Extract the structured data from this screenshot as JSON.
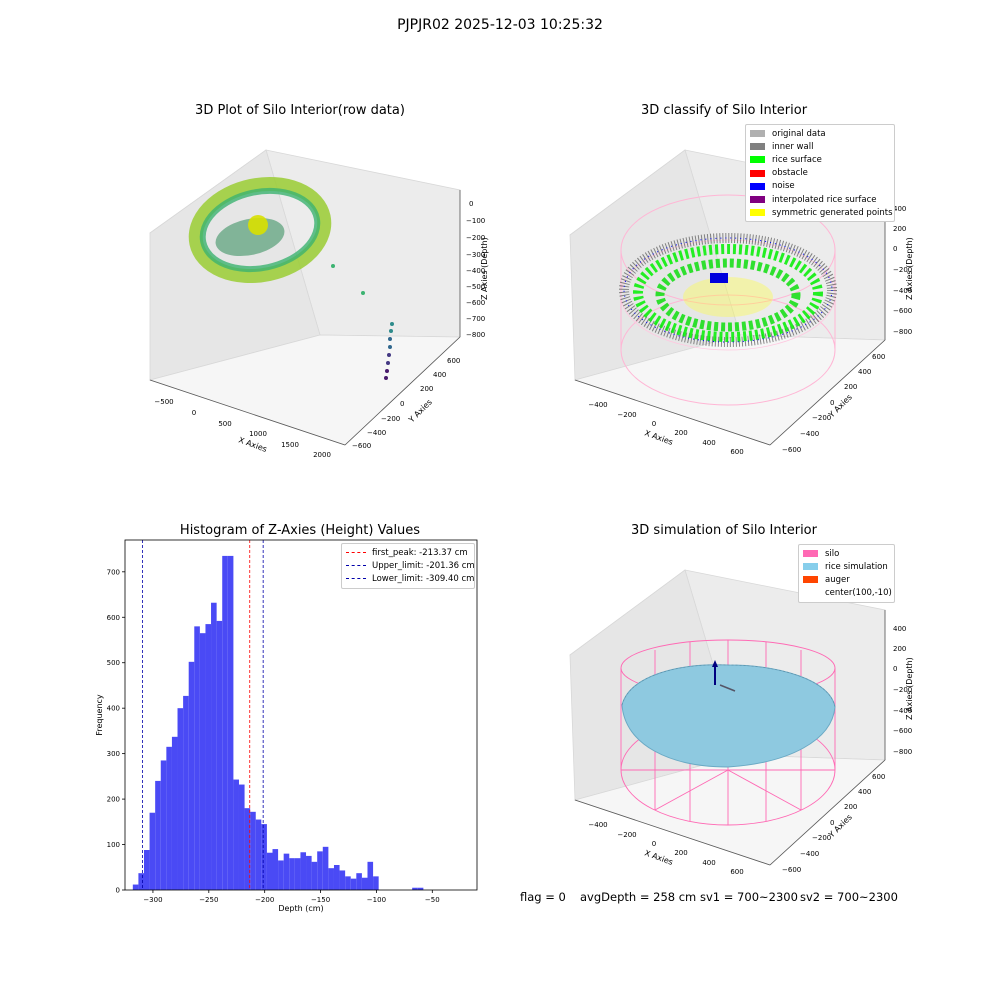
{
  "suptitle": "PJPJR02 2025-12-03 10:25:32",
  "status_line": {
    "flag": "flag = 0",
    "avg_depth": "avgDepth = 258 cm",
    "sv1": "sv1 = 700~2300",
    "sv2": "sv2 = 700~2300"
  },
  "panel_raw": {
    "title": "3D Plot of Silo Interior(row data)",
    "xlabel": "X Axies",
    "ylabel": "Y Axies",
    "zlabel": "Z Axies (Depth)",
    "x_ticks": [
      "−500",
      "0",
      "500",
      "1000",
      "1500",
      "2000"
    ],
    "y_ticks": [
      "−600",
      "−400",
      "−200",
      "0",
      "200",
      "400",
      "600"
    ],
    "z_ticks": [
      "0",
      "−100",
      "−200",
      "−300",
      "−400",
      "−500",
      "−600",
      "−700",
      "−800"
    ]
  },
  "panel_classify": {
    "title": "3D classify of Silo Interior",
    "xlabel": "X Axies",
    "ylabel": "Y Axies",
    "zlabel": "Z Axies (Depth)",
    "x_ticks": [
      "−400",
      "−200",
      "0",
      "200",
      "400",
      "600"
    ],
    "y_ticks": [
      "−600",
      "−400",
      "−200",
      "0",
      "200",
      "400",
      "600"
    ],
    "z_ticks": [
      "400",
      "200",
      "0",
      "−200",
      "−400",
      "−600",
      "−800"
    ],
    "legend": [
      {
        "label": "original data",
        "color": "#b0b0b0"
      },
      {
        "label": "inner wall",
        "color": "#808080"
      },
      {
        "label": "rice surface",
        "color": "#00ff00"
      },
      {
        "label": "obstacle",
        "color": "#ff0000"
      },
      {
        "label": "noise",
        "color": "#0000ff"
      },
      {
        "label": "interpolated rice surface",
        "color": "#800080"
      },
      {
        "label": "symmetric generated points",
        "color": "#ffff00"
      }
    ]
  },
  "panel_sim": {
    "title": "3D simulation of Silo Interior",
    "xlabel": "X Axies",
    "ylabel": "Y Axies",
    "zlabel": "Z Axies (Depth)",
    "x_ticks": [
      "−400",
      "−200",
      "0",
      "200",
      "400",
      "600"
    ],
    "y_ticks": [
      "−600",
      "−400",
      "−200",
      "0",
      "200",
      "400",
      "600"
    ],
    "z_ticks": [
      "400",
      "200",
      "0",
      "−200",
      "−400",
      "−600",
      "−800"
    ],
    "legend": [
      {
        "label": "silo",
        "color": "#ff69b4"
      },
      {
        "label": "rice simulation",
        "color": "#87ceeb"
      },
      {
        "label": "auger",
        "color": "#ff4500"
      },
      {
        "label": "center(100,-10)",
        "color": ""
      }
    ]
  },
  "chart_data": {
    "type": "bar",
    "title": "Histogram of Z-Axies (Height) Values",
    "xlabel": "Depth (cm)",
    "ylabel": "Frequency",
    "xlim": [
      -325,
      -10
    ],
    "ylim": [
      0,
      770
    ],
    "x_ticks": [
      -300,
      -250,
      -200,
      -150,
      -100,
      -50
    ],
    "y_ticks": [
      0,
      100,
      200,
      300,
      400,
      500,
      600,
      700
    ],
    "bar_color": "#4a4af5",
    "bin_width": 5,
    "bins": [
      [
        -318,
        12
      ],
      [
        -313,
        37
      ],
      [
        -308,
        88
      ],
      [
        -303,
        170
      ],
      [
        -298,
        240
      ],
      [
        -293,
        285
      ],
      [
        -288,
        315
      ],
      [
        -283,
        337
      ],
      [
        -278,
        400
      ],
      [
        -273,
        427
      ],
      [
        -268,
        502
      ],
      [
        -263,
        580
      ],
      [
        -258,
        565
      ],
      [
        -253,
        585
      ],
      [
        -248,
        632
      ],
      [
        -243,
        592
      ],
      [
        -238,
        735
      ],
      [
        -233,
        735
      ],
      [
        -228,
        243
      ],
      [
        -223,
        232
      ],
      [
        -218,
        180
      ],
      [
        -213,
        172
      ],
      [
        -208,
        155
      ],
      [
        -203,
        145
      ],
      [
        -198,
        82
      ],
      [
        -193,
        90
      ],
      [
        -188,
        65
      ],
      [
        -183,
        80
      ],
      [
        -178,
        70
      ],
      [
        -173,
        70
      ],
      [
        -168,
        83
      ],
      [
        -163,
        75
      ],
      [
        -158,
        62
      ],
      [
        -153,
        85
      ],
      [
        -148,
        95
      ],
      [
        -143,
        48
      ],
      [
        -138,
        55
      ],
      [
        -133,
        43
      ],
      [
        -128,
        30
      ],
      [
        -123,
        25
      ],
      [
        -118,
        37
      ],
      [
        -113,
        27
      ],
      [
        -108,
        62
      ],
      [
        -103,
        30
      ],
      [
        -68,
        5
      ],
      [
        -63,
        5
      ]
    ],
    "bin_width_list": [
      5,
      5,
      5,
      5,
      5,
      5,
      5,
      5,
      5,
      5,
      5,
      5,
      5,
      5,
      5,
      5,
      5,
      5,
      5,
      5,
      5,
      5,
      5,
      5,
      5,
      5,
      5,
      5,
      5,
      5,
      5,
      5,
      5,
      5,
      5,
      5,
      5,
      5,
      5,
      5,
      5,
      5,
      5,
      5,
      5,
      5
    ],
    "vlines": [
      {
        "label": "first_peak: -213.37 cm",
        "x": -213.37,
        "color": "#ff0000"
      },
      {
        "label": "Upper_limit: -201.36 cm",
        "x": -201.36,
        "color": "#0000aa"
      },
      {
        "label": "Lower_limit: -309.40 cm",
        "x": -309.4,
        "color": "#0000aa"
      }
    ]
  }
}
